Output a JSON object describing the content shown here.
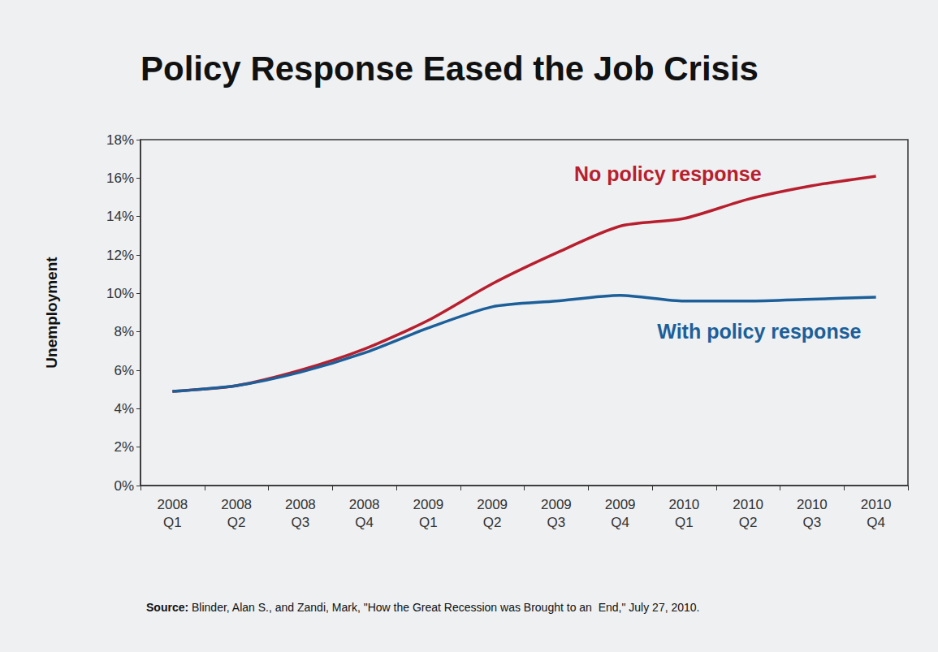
{
  "chart_data": {
    "type": "line",
    "title": "Policy Response Eased the Job Crisis",
    "y_label": "Unemployment",
    "categories": [
      "2008 Q1",
      "2008 Q2",
      "2008 Q3",
      "2008 Q4",
      "2009 Q1",
      "2009 Q2",
      "2009 Q3",
      "2009 Q4",
      "2010 Q1",
      "2010 Q2",
      "2010 Q3",
      "2010 Q4"
    ],
    "series": [
      {
        "name": "No policy response",
        "color": "#b81f2e",
        "values": [
          4.9,
          5.2,
          6.0,
          7.1,
          8.6,
          10.5,
          12.1,
          13.5,
          13.9,
          14.9,
          15.6,
          16.1
        ]
      },
      {
        "name": "With policy response",
        "color": "#1c5f99",
        "values": [
          4.9,
          5.2,
          5.9,
          6.9,
          8.2,
          9.3,
          9.6,
          9.9,
          9.6,
          9.6,
          9.7,
          9.8
        ]
      }
    ],
    "ylim": [
      0,
      18
    ],
    "yticks": [
      {
        "value": 0,
        "label": "0%"
      },
      {
        "value": 2,
        "label": "2%"
      },
      {
        "value": 4,
        "label": "4%"
      },
      {
        "value": 6,
        "label": "6%"
      },
      {
        "value": 8,
        "label": "8%"
      },
      {
        "value": 10,
        "label": "10%"
      },
      {
        "value": 12,
        "label": "12%"
      },
      {
        "value": 14,
        "label": "14%"
      },
      {
        "value": 16,
        "label": "16%"
      },
      {
        "value": 18,
        "label": "18%"
      }
    ],
    "grid": false,
    "source_label": "Source:",
    "source": "Blinder, Alan S., and Zandi, Mark, \"How the Great Recession was Brought to an  End,\" July 27, 2010."
  }
}
